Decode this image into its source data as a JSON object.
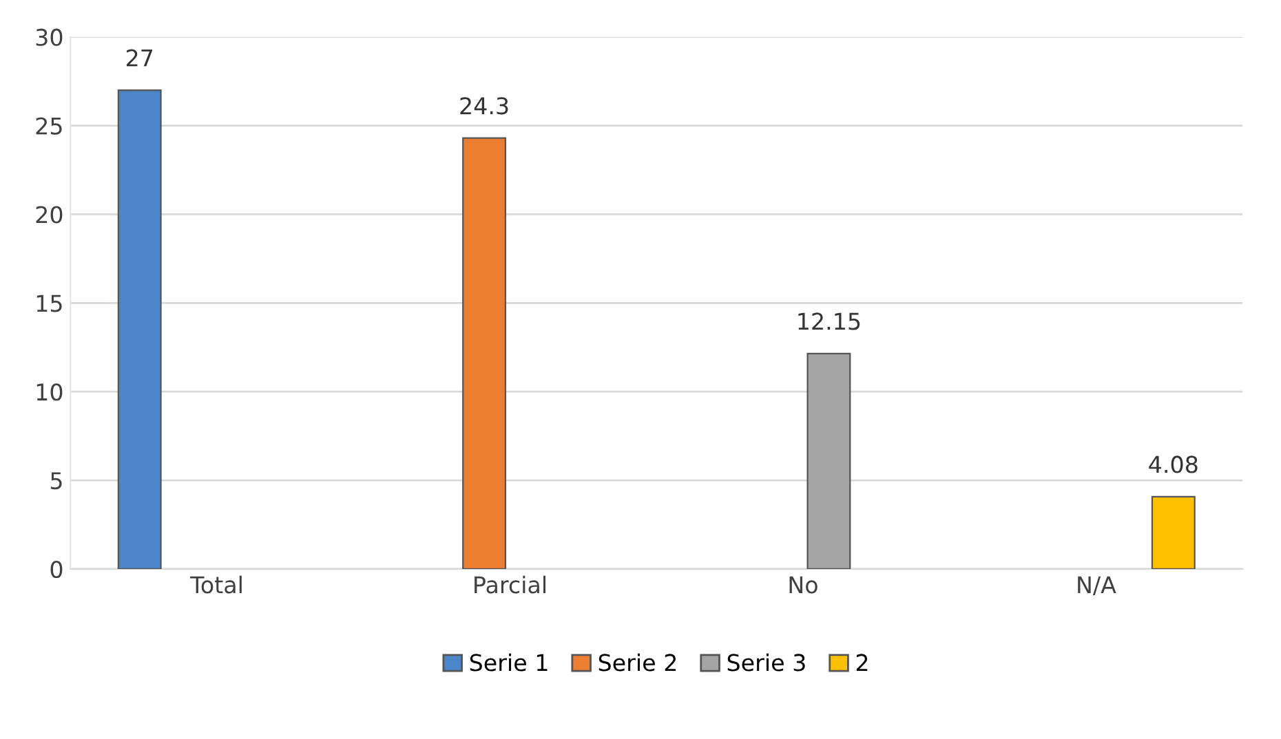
{
  "chart_data": {
    "type": "bar",
    "categories": [
      "Total",
      "Parcial",
      "No",
      "N/A"
    ],
    "series": [
      {
        "name": "Serie 1",
        "color": "#4a86c8",
        "values": [
          27,
          null,
          null,
          null
        ]
      },
      {
        "name": "Serie 2",
        "color": "#ed7d31",
        "values": [
          null,
          24.3,
          null,
          null
        ]
      },
      {
        "name": "Serie 3",
        "color": "#a5a5a5",
        "values": [
          null,
          null,
          12.15,
          null
        ]
      },
      {
        "name": "2",
        "color": "#ffc000",
        "values": [
          null,
          null,
          null,
          4.08
        ]
      }
    ],
    "ylim": [
      0,
      30
    ],
    "yticks": [
      0,
      5,
      10,
      15,
      20,
      25,
      30
    ],
    "grid": "y",
    "legend": "bottom",
    "data_labels": true
  }
}
